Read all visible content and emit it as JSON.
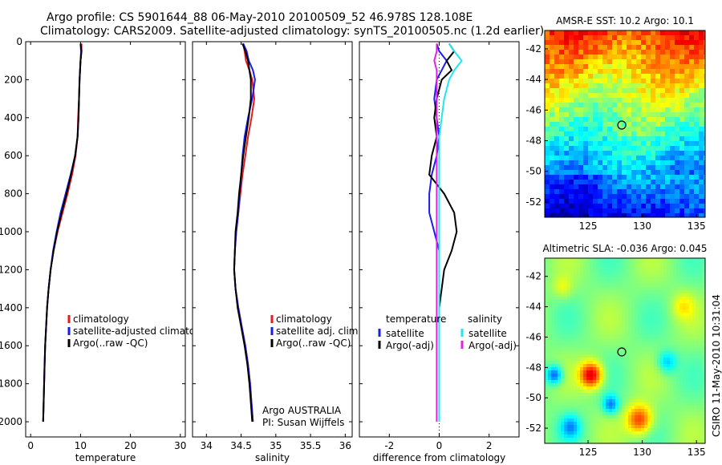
{
  "titles": {
    "line1": "Argo profile: CS 5901644_88 06-May-2010 20100509_52 46.978S 128.108E",
    "line2": "Climatology: CARS2009. Satellite-adjusted climatology: synTS_20100505.nc (1.2d earlier)"
  },
  "side_note": "CSIRO 11-May-2010 10:31:04",
  "colors": {
    "climatology": "#e41a1c",
    "satellite": "#1c1cf0",
    "argo": "#000000",
    "sal_satellite": "#22e6f0",
    "sal_argo": "#e620e6"
  },
  "chart_data": [
    {
      "type": "line",
      "name": "temperature-profile",
      "xlabel": "temperature",
      "ylabel": "",
      "xlim": [
        -1,
        31
      ],
      "ylim": [
        2080,
        0
      ],
      "xticks": [
        "0",
        "10",
        "20",
        "30"
      ],
      "yticks": [
        "0",
        "200",
        "400",
        "600",
        "800",
        "1000",
        "1200",
        "1400",
        "1600",
        "1800",
        "2000"
      ],
      "depth": [
        10,
        50,
        100,
        150,
        200,
        300,
        400,
        500,
        600,
        700,
        800,
        900,
        1000,
        1100,
        1200,
        1300,
        1400,
        1500,
        1600,
        1700,
        1800,
        1900,
        2000
      ],
      "series": [
        {
          "name": "climatology",
          "values": [
            10.2,
            10.2,
            10.0,
            9.9,
            9.8,
            9.7,
            9.5,
            9.4,
            9.0,
            8.3,
            7.4,
            6.4,
            5.4,
            4.6,
            4.0,
            3.6,
            3.3,
            3.1,
            2.9,
            2.8,
            2.7,
            2.6,
            2.5
          ]
        },
        {
          "name": "satellite-adjusted climatology",
          "values": [
            10.0,
            10.1,
            10.0,
            9.9,
            9.8,
            9.7,
            9.6,
            9.4,
            8.9,
            8.0,
            7.0,
            6.0,
            5.2,
            4.5,
            4.0,
            3.6,
            3.3,
            3.1,
            2.9,
            2.8,
            2.7,
            2.6,
            2.5
          ]
        },
        {
          "name": "Argo(..raw -QC)",
          "values": [
            10.0,
            10.2,
            10.0,
            9.9,
            9.8,
            9.7,
            9.6,
            9.4,
            8.9,
            8.1,
            7.2,
            6.2,
            5.3,
            4.6,
            4.0,
            3.6,
            3.3,
            3.1,
            2.9,
            2.8,
            2.7,
            2.6,
            2.5
          ]
        }
      ],
      "legend": [
        "climatology",
        "satellite-adjusted climatolog",
        "Argo(..raw -QC)"
      ]
    },
    {
      "type": "line",
      "name": "salinity-profile",
      "xlabel": "salinity",
      "ylabel": "",
      "xlim": [
        33.8,
        36.1
      ],
      "ylim": [
        2080,
        0
      ],
      "xticks": [
        "34",
        "34.5",
        "35",
        "35.5",
        "36"
      ],
      "depth": [
        10,
        50,
        100,
        150,
        200,
        300,
        400,
        500,
        600,
        700,
        800,
        900,
        1000,
        1100,
        1200,
        1300,
        1400,
        1500,
        1600,
        1700,
        1800,
        1900,
        2000
      ],
      "series": [
        {
          "name": "climatology",
          "values": [
            34.53,
            34.55,
            34.57,
            34.62,
            34.66,
            34.69,
            34.65,
            34.6,
            34.56,
            34.52,
            34.49,
            34.46,
            34.43,
            34.41,
            34.4,
            34.42,
            34.46,
            34.51,
            34.56,
            34.6,
            34.63,
            34.65,
            34.67
          ]
        },
        {
          "name": "satellite adj. clim.",
          "values": [
            34.53,
            34.58,
            34.61,
            34.67,
            34.7,
            34.66,
            34.6,
            34.55,
            34.52,
            34.5,
            34.48,
            34.46,
            34.43,
            34.41,
            34.4,
            34.42,
            34.46,
            34.51,
            34.56,
            34.6,
            34.63,
            34.65,
            34.67
          ]
        },
        {
          "name": "Argo(..raw -QC)",
          "values": [
            34.52,
            34.56,
            34.6,
            34.62,
            34.64,
            34.64,
            34.61,
            34.57,
            34.53,
            34.5,
            34.47,
            34.45,
            34.42,
            34.41,
            34.4,
            34.42,
            34.45,
            34.5,
            34.55,
            34.59,
            34.62,
            34.64,
            34.66
          ]
        }
      ],
      "legend": [
        "climatology",
        "satellite adj. clim.",
        "Argo(..raw -QC)"
      ],
      "annotations": [
        "Argo AUSTRALIA",
        "PI: Susan Wijffels"
      ]
    },
    {
      "type": "line",
      "name": "difference-profile",
      "xlabel": "difference from climatology",
      "ylabel": "",
      "xlim": [
        -3.2,
        3.2
      ],
      "ylim": [
        2080,
        0
      ],
      "xticks": [
        "-2",
        "0",
        "2"
      ],
      "depth": [
        10,
        50,
        100,
        150,
        200,
        300,
        400,
        500,
        600,
        700,
        800,
        900,
        1000,
        1100,
        1200,
        1300,
        1400,
        1500,
        1600,
        1700,
        1800,
        1900,
        2000
      ],
      "series": [
        {
          "name": "temperature satellite",
          "values": [
            -0.1,
            0.0,
            0.3,
            0.1,
            -0.1,
            -0.2,
            -0.1,
            0.0,
            -0.1,
            -0.3,
            -0.4,
            -0.4,
            -0.2,
            0.0,
            0.0,
            0.0,
            0.0,
            0.0,
            0.0,
            0.0,
            0.0,
            0.0,
            0.0
          ]
        },
        {
          "name": "temperature Argo(-adj)",
          "values": [
            0.4,
            0.6,
            0.3,
            0.5,
            0.1,
            -0.1,
            -0.2,
            -0.1,
            -0.3,
            -0.4,
            0.2,
            0.6,
            0.7,
            0.5,
            0.2,
            0.1,
            0.0,
            0.0,
            0.0,
            0.0,
            0.0,
            0.0,
            0.0
          ]
        },
        {
          "name": "salinity satellite",
          "values": [
            0.4,
            0.6,
            0.9,
            0.6,
            0.4,
            0.2,
            0.1,
            0.0,
            0.0,
            0.0,
            0.0,
            0.0,
            0.0,
            0.0,
            0.0,
            0.0,
            0.0,
            0.0,
            0.0,
            0.0,
            0.0,
            0.0,
            0.0
          ]
        },
        {
          "name": "salinity Argo(-adj)",
          "values": [
            -0.1,
            -0.1,
            -0.2,
            -0.1,
            -0.1,
            -0.1,
            -0.1,
            -0.1,
            -0.1,
            -0.1,
            -0.1,
            -0.1,
            -0.1,
            -0.1,
            -0.1,
            -0.1,
            -0.1,
            -0.1,
            -0.1,
            -0.1,
            -0.1,
            -0.1,
            -0.1
          ]
        }
      ],
      "legend_headers": [
        "temperature",
        "salinity"
      ],
      "legend": [
        "satellite",
        "Argo(-adj)",
        "satellite",
        "Argo(-adj)"
      ]
    },
    {
      "type": "heatmap",
      "name": "sst-map",
      "title": "AMSR-E SST: 10.2 Argo: 10.1",
      "xlim": [
        121,
        135.8
      ],
      "ylim": [
        -53,
        -40.8
      ],
      "xticks": [
        "125",
        "130",
        "135"
      ],
      "yticks": [
        "-42",
        "-44",
        "-46",
        "-48",
        "-50",
        "-52"
      ],
      "marker": {
        "lon": 128.108,
        "lat": -46.978
      }
    },
    {
      "type": "heatmap",
      "name": "sla-map",
      "title": "Altimetric SLA: -0.036 Argo: 0.045",
      "xlim": [
        121,
        135.8
      ],
      "ylim": [
        -53,
        -40.8
      ],
      "xticks": [
        "125",
        "130",
        "135"
      ],
      "yticks": [
        "-42",
        "-44",
        "-46",
        "-48",
        "-50",
        "-52"
      ],
      "marker": {
        "lon": 128.108,
        "lat": -46.978
      }
    }
  ]
}
